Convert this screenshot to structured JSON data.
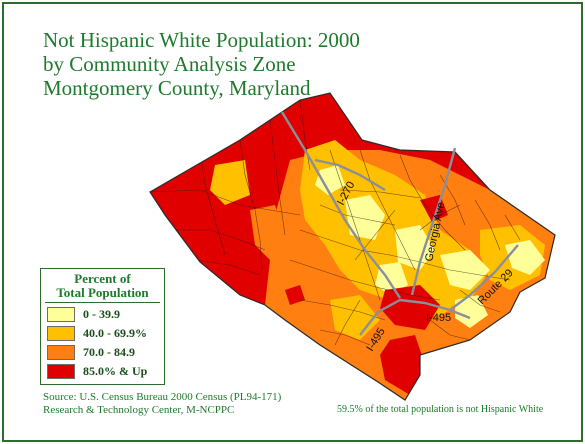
{
  "title": {
    "line1": "Not Hispanic White Population: 2000",
    "line2": "by Community Analysis Zone",
    "line3": "Montgomery County, Maryland"
  },
  "legend": {
    "title_line1": "Percent of",
    "title_line2": "Total Population",
    "classes": [
      {
        "label": "0 - 39.9",
        "color": "#ffff99"
      },
      {
        "label": "40.0 - 69.9%",
        "color": "#ffc000"
      },
      {
        "label": "70.0 - 84.9",
        "color": "#ff7f10"
      },
      {
        "label": "85.0% & Up",
        "color": "#e00000"
      }
    ]
  },
  "roads": {
    "i270": "I-270",
    "georgia": "Georgia Ave",
    "route29": "Route 29",
    "i495_west": "I-495",
    "i495_east": "I-495"
  },
  "source": {
    "line1": "Source: U.S. Census Bureau 2000 Census (PL94-171)",
    "line2": "Research & Technology Center, M-NCPPC"
  },
  "summary": "59.5% of the total population is not Hispanic White",
  "colors": {
    "title": "#1e7a2c",
    "frame": "#2e6b2e",
    "boundary": "#2a2a2a",
    "highway": "#8a8f9a"
  }
}
